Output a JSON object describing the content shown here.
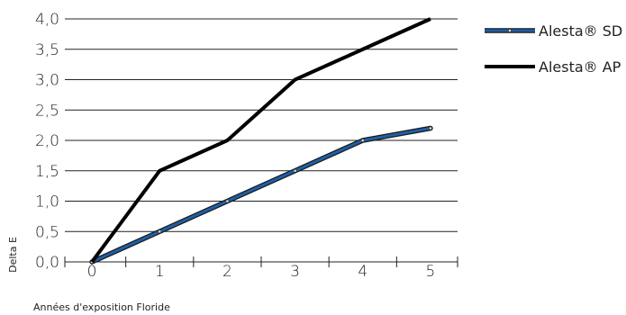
{
  "chart_data": {
    "type": "line",
    "title": "",
    "xlabel": "Années d'exposition Floride",
    "ylabel": "Delta E",
    "x": [
      0,
      1,
      2,
      3,
      4,
      5
    ],
    "x_tick_labels": [
      "0",
      "1",
      "2",
      "3",
      "4",
      "5"
    ],
    "y_tick_labels": [
      "0,0",
      "0,5",
      "1,0",
      "1,5",
      "2,0",
      "2,5",
      "3,0",
      "3,5",
      "4,0"
    ],
    "y_ticks": [
      0,
      0.5,
      1.0,
      1.5,
      2.0,
      2.5,
      3.0,
      3.5,
      4.0
    ],
    "xlim": [
      -0.4,
      5.4
    ],
    "ylim": [
      0,
      4.0
    ],
    "grid": "horizontal",
    "legend_position": "right",
    "series": [
      {
        "name": "Alesta® SD",
        "values": [
          0,
          0.5,
          1.0,
          1.5,
          2.0,
          2.2
        ],
        "color": "#1f5fa6",
        "outline": "#1a1a1a",
        "markers": true
      },
      {
        "name": "Alesta® AP",
        "values": [
          0,
          1.5,
          2.0,
          3.0,
          3.5,
          4.0
        ],
        "color": "#000000",
        "markers": false
      }
    ]
  }
}
